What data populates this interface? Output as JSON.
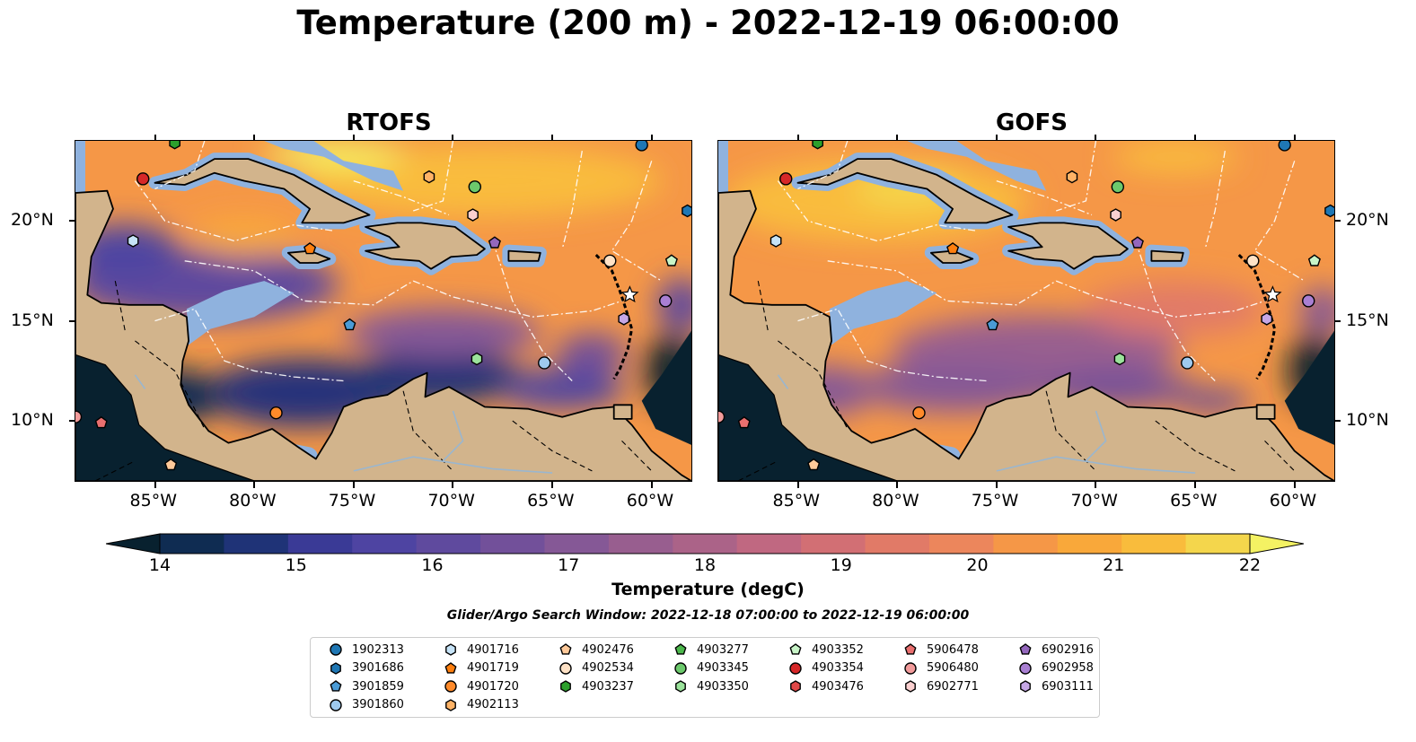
{
  "title": "Temperature (200 m) - 2022-12-19 06:00:00",
  "panels": [
    {
      "title": "RTOFS"
    },
    {
      "title": "GOFS"
    }
  ],
  "axes": {
    "x_ticks": [
      "85°W",
      "80°W",
      "75°W",
      "70°W",
      "65°W",
      "60°W"
    ],
    "y_ticks": [
      "20°N",
      "15°N",
      "10°N"
    ],
    "lon_range": [
      -89,
      -58
    ],
    "lat_range": [
      7,
      24
    ]
  },
  "colorbar": {
    "ticks": [
      "14",
      "15",
      "16",
      "17",
      "18",
      "19",
      "20",
      "21",
      "22"
    ],
    "label": "Temperature (degC)",
    "colors": [
      "#08212f",
      "#0f2c52",
      "#1f3377",
      "#3a3a96",
      "#4e44a2",
      "#5f4a9e",
      "#72509a",
      "#855896",
      "#985e8f",
      "#ab6388",
      "#c06881",
      "#d26f74",
      "#e17a67",
      "#ec865c",
      "#f59747",
      "#f9a83a",
      "#f9bc3c",
      "#f4d64c",
      "#f4f263"
    ]
  },
  "search_window": "Glider/Argo Search Window: 2022-12-18 07:00:00 to 2022-12-19 06:00:00",
  "legend": [
    {
      "id": "1902313",
      "shape": "circle",
      "color": "#1f77b4"
    },
    {
      "id": "3901686",
      "shape": "hexagon",
      "color": "#1f77b4"
    },
    {
      "id": "3901859",
      "shape": "pentagon",
      "color": "#4a9bd6"
    },
    {
      "id": "3901860",
      "shape": "circle",
      "color": "#9ec9ee"
    },
    {
      "id": "4901716",
      "shape": "hexagon",
      "color": "#c6e3f7"
    },
    {
      "id": "4901719",
      "shape": "pentagon",
      "color": "#ff7f0e"
    },
    {
      "id": "4901720",
      "shape": "circle",
      "color": "#ff8a2a"
    },
    {
      "id": "4902113",
      "shape": "hexagon",
      "color": "#ffb366"
    },
    {
      "id": "4902476",
      "shape": "pentagon",
      "color": "#ffc999"
    },
    {
      "id": "4902534",
      "shape": "circle",
      "color": "#ffe2c6"
    },
    {
      "id": "4903237",
      "shape": "hexagon",
      "color": "#2ca02c"
    },
    {
      "id": "4903277",
      "shape": "pentagon",
      "color": "#4cb84c"
    },
    {
      "id": "4903345",
      "shape": "circle",
      "color": "#6cc96c"
    },
    {
      "id": "4903350",
      "shape": "hexagon",
      "color": "#9be39b"
    },
    {
      "id": "4903352",
      "shape": "pentagon",
      "color": "#c8f5c8"
    },
    {
      "id": "4903354",
      "shape": "circle",
      "color": "#d62728"
    },
    {
      "id": "4903476",
      "shape": "hexagon",
      "color": "#e04848"
    },
    {
      "id": "5906478",
      "shape": "pentagon",
      "color": "#ea6f6f"
    },
    {
      "id": "5906480",
      "shape": "circle",
      "color": "#f29b9b"
    },
    {
      "id": "6902771",
      "shape": "hexagon",
      "color": "#fbd0d0"
    },
    {
      "id": "6902916",
      "shape": "pentagon",
      "color": "#9467bd"
    },
    {
      "id": "6902958",
      "shape": "circle",
      "color": "#a97fd3"
    },
    {
      "id": "6903111",
      "shape": "hexagon",
      "color": "#c6a7e6"
    }
  ],
  "markers": [
    {
      "id": "4903354",
      "lon": -85.6,
      "lat": 22.1
    },
    {
      "id": "1902313",
      "lon": -60.5,
      "lat": 23.8
    },
    {
      "id": "3901686",
      "lon": -58.2,
      "lat": 20.5
    },
    {
      "id": "4901716",
      "lon": -86.1,
      "lat": 19.0
    },
    {
      "id": "4901719",
      "lon": -77.2,
      "lat": 18.6
    },
    {
      "id": "6902916",
      "lon": -67.9,
      "lat": 18.9
    },
    {
      "id": "4903345",
      "lon": -68.9,
      "lat": 21.7
    },
    {
      "id": "6902771",
      "lon": -69.0,
      "lat": 20.3
    },
    {
      "id": "4902534",
      "lon": -62.1,
      "lat": 18.0
    },
    {
      "id": "4903352",
      "lon": -59.0,
      "lat": 18.0
    },
    {
      "id": "6902958",
      "lon": -59.3,
      "lat": 16.0
    },
    {
      "id": "6903111",
      "lon": -61.4,
      "lat": 15.1
    },
    {
      "id": "3901859",
      "lon": -75.2,
      "lat": 14.8
    },
    {
      "id": "4903350",
      "lon": -68.8,
      "lat": 13.1
    },
    {
      "id": "3901860",
      "lon": -65.4,
      "lat": 12.9
    },
    {
      "id": "4901720",
      "lon": -78.9,
      "lat": 10.4
    },
    {
      "id": "5906480",
      "lon": -89.0,
      "lat": 10.2
    },
    {
      "id": "5906478",
      "lon": -87.7,
      "lat": 9.9
    },
    {
      "id": "4902476",
      "lon": -84.2,
      "lat": 7.8
    },
    {
      "id": "4903237",
      "lon": -84.0,
      "lat": 23.9
    },
    {
      "id": "4902113",
      "lon": -71.2,
      "lat": 22.2
    }
  ]
}
